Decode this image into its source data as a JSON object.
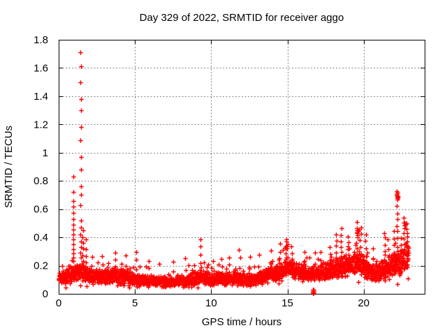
{
  "accent_colors": {
    "marker": "#ff0000",
    "grid": "#848484",
    "border": "#000000"
  },
  "chart_data": {
    "type": "scatter",
    "title": "Day 329 of 2022, SRMTID for receiver aggo",
    "xlabel": "GPS time / hours",
    "ylabel": "SRMTID / TECUs",
    "xlim": [
      0,
      24
    ],
    "ylim": [
      0,
      1.8
    ],
    "xticks": [
      0,
      5,
      10,
      15,
      20
    ],
    "xtick_labels": [
      "0",
      "5",
      "10",
      "15",
      "20"
    ],
    "yticks": [
      0,
      0.2,
      0.4,
      0.6,
      0.8,
      1.0,
      1.2,
      1.4,
      1.6,
      1.8
    ],
    "ytick_labels": [
      "0",
      "0.2",
      "0.4",
      "0.6",
      "0.8",
      "1",
      "1.2",
      "1.4",
      "1.6",
      "1.8"
    ],
    "grid": "dashed-major-both-axes",
    "legend": "none",
    "marker": "plus",
    "marker_color": "#ff0000",
    "points_model": {
      "description": "Dense scatter band of SRMTID values vs GPS time; band center/halfwidth control points, isolated spike columns, spike clusters and one near-zero outlier block.",
      "band": {
        "t_start": 0,
        "t_end": 22.95,
        "dt": 0.009,
        "profile": [
          [
            0,
            0.12,
            0.055
          ],
          [
            0.5,
            0.12,
            0.05
          ],
          [
            1,
            0.14,
            0.06
          ],
          [
            1.5,
            0.16,
            0.07
          ],
          [
            2,
            0.13,
            0.055
          ],
          [
            3,
            0.12,
            0.05
          ],
          [
            3.7,
            0.13,
            0.06
          ],
          [
            4.5,
            0.12,
            0.055
          ],
          [
            5,
            0.1,
            0.045
          ],
          [
            6,
            0.095,
            0.04
          ],
          [
            6.5,
            0.085,
            0.035
          ],
          [
            7,
            0.09,
            0.04
          ],
          [
            7.5,
            0.085,
            0.035
          ],
          [
            8,
            0.09,
            0.04
          ],
          [
            8.7,
            0.1,
            0.05
          ],
          [
            9.3,
            0.12,
            0.055
          ],
          [
            10,
            0.1,
            0.045
          ],
          [
            10.5,
            0.11,
            0.05
          ],
          [
            11,
            0.105,
            0.05
          ],
          [
            11.5,
            0.115,
            0.055
          ],
          [
            12,
            0.105,
            0.05
          ],
          [
            12.5,
            0.1,
            0.05
          ],
          [
            13,
            0.11,
            0.05
          ],
          [
            13.5,
            0.125,
            0.055
          ],
          [
            14,
            0.14,
            0.055
          ],
          [
            14.5,
            0.155,
            0.06
          ],
          [
            15,
            0.19,
            0.07
          ],
          [
            15.5,
            0.165,
            0.06
          ],
          [
            16,
            0.15,
            0.06
          ],
          [
            16.5,
            0.135,
            0.055
          ],
          [
            17,
            0.15,
            0.06
          ],
          [
            17.5,
            0.165,
            0.065
          ],
          [
            18,
            0.175,
            0.07
          ],
          [
            18.5,
            0.19,
            0.075
          ],
          [
            19,
            0.21,
            0.08
          ],
          [
            19.5,
            0.23,
            0.085
          ],
          [
            20,
            0.195,
            0.08
          ],
          [
            20.5,
            0.155,
            0.07
          ],
          [
            21,
            0.15,
            0.07
          ],
          [
            21.5,
            0.175,
            0.08
          ],
          [
            22,
            0.21,
            0.09
          ],
          [
            22.5,
            0.235,
            0.1
          ],
          [
            22.95,
            0.27,
            0.11
          ]
        ]
      },
      "columns": [
        [
          0.96,
          0.83
        ],
        [
          0.95,
          0.72
        ],
        [
          0.96,
          0.66
        ],
        [
          0.97,
          0.62
        ],
        [
          0.95,
          0.575
        ],
        [
          0.96,
          0.53
        ],
        [
          0.96,
          0.49
        ],
        [
          0.97,
          0.455
        ],
        [
          0.95,
          0.42
        ],
        [
          0.96,
          0.385
        ],
        [
          0.96,
          0.35
        ],
        [
          0.95,
          0.315
        ],
        [
          0.96,
          0.285
        ],
        [
          0.97,
          0.255
        ],
        [
          0.96,
          0.23
        ],
        [
          1.44,
          1.71
        ],
        [
          1.45,
          1.61
        ],
        [
          1.44,
          1.5
        ],
        [
          1.45,
          1.38
        ],
        [
          1.46,
          1.3
        ],
        [
          1.45,
          1.18
        ],
        [
          1.44,
          1.09
        ],
        [
          1.45,
          0.97
        ],
        [
          1.46,
          0.88
        ],
        [
          1.45,
          0.76
        ],
        [
          1.45,
          0.7
        ],
        [
          1.44,
          0.63
        ],
        [
          1.45,
          0.52
        ],
        [
          1.46,
          0.47
        ],
        [
          1.44,
          0.42
        ],
        [
          1.45,
          0.37
        ],
        [
          1.45,
          0.33
        ],
        [
          1.44,
          0.29
        ],
        [
          9.28,
          0.385
        ],
        [
          9.3,
          0.335
        ]
      ],
      "spikes": [
        [
          1.58,
          0.45,
          7
        ],
        [
          1.8,
          0.38,
          5
        ],
        [
          2.2,
          0.26,
          3
        ],
        [
          2.9,
          0.27,
          3
        ],
        [
          3.7,
          0.3,
          4
        ],
        [
          4.4,
          0.28,
          3
        ],
        [
          5.07,
          0.3,
          4
        ],
        [
          5.9,
          0.24,
          3
        ],
        [
          6.6,
          0.22,
          2
        ],
        [
          7.5,
          0.23,
          3
        ],
        [
          8.3,
          0.25,
          3
        ],
        [
          9.3,
          0.27,
          4
        ],
        [
          10.1,
          0.24,
          2
        ],
        [
          10.7,
          0.25,
          3
        ],
        [
          11.2,
          0.25,
          2
        ],
        [
          11.85,
          0.31,
          4
        ],
        [
          12.5,
          0.27,
          3
        ],
        [
          13.1,
          0.27,
          3
        ],
        [
          13.9,
          0.3,
          3
        ],
        [
          14.5,
          0.35,
          5
        ],
        [
          14.9,
          0.39,
          7
        ],
        [
          15.3,
          0.33,
          4
        ],
        [
          16.1,
          0.29,
          3
        ],
        [
          16.8,
          0.28,
          3
        ],
        [
          17.2,
          0.3,
          3
        ],
        [
          17.8,
          0.33,
          4
        ],
        [
          18.2,
          0.42,
          6
        ],
        [
          18.55,
          0.46,
          7
        ],
        [
          19.0,
          0.4,
          5
        ],
        [
          19.55,
          0.5,
          8
        ],
        [
          19.8,
          0.47,
          6
        ],
        [
          20.15,
          0.42,
          5
        ],
        [
          20.6,
          0.33,
          3
        ],
        [
          21.35,
          0.43,
          7
        ],
        [
          21.6,
          0.38,
          4
        ],
        [
          22.0,
          0.45,
          5
        ],
        [
          22.2,
          0.62,
          9
        ],
        [
          22.45,
          0.4,
          4
        ],
        [
          22.65,
          0.55,
          8
        ],
        [
          22.85,
          0.5,
          7
        ]
      ],
      "blobs": [
        [
          22.2,
          0.7,
          0.06,
          0.035,
          13
        ],
        [
          19.6,
          0.44,
          0.09,
          0.03,
          7
        ],
        [
          14.95,
          0.34,
          0.09,
          0.025,
          6
        ],
        [
          22.7,
          0.5,
          0.05,
          0.02,
          5
        ]
      ],
      "outlier_block": {
        "x": 16.68,
        "dx": 0.05,
        "ys": [
          0.004,
          0.012,
          0.02,
          0.028
        ]
      }
    }
  }
}
